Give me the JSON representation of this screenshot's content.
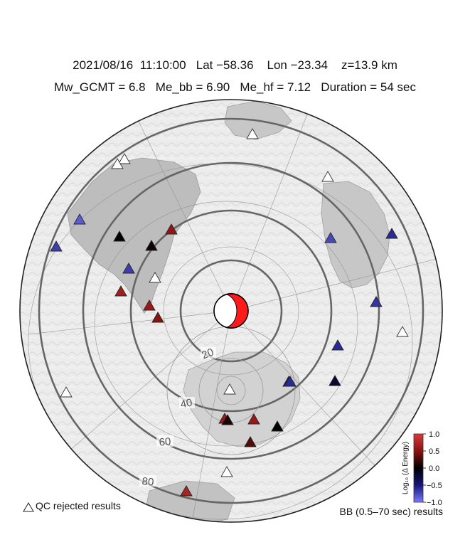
{
  "header": {
    "date": "2021/08/16",
    "time": "11:10:00",
    "lat": "Lat −58.36",
    "lon": "Lon −23.34",
    "depth": "z=13.9 km",
    "mw": "Mw_GCMT = 6.8",
    "me_bb": "Me_bb = 6.90",
    "me_hf": "Me_hf = 7.12",
    "duration": "Duration = 54 sec"
  },
  "distance_rings": {
    "labels": [
      "20",
      "40",
      "60",
      "80"
    ],
    "ring_color": "#666666"
  },
  "focal_mechanism": {
    "fill_color": "#ff1a1a",
    "background_color": "#ffffff"
  },
  "stations": [
    {
      "id": "s01",
      "status": "rejected",
      "energy": null
    },
    {
      "id": "s02",
      "status": "rejected",
      "energy": null
    },
    {
      "id": "s03",
      "status": "rejected",
      "energy": null
    },
    {
      "id": "s04",
      "status": "rejected",
      "energy": null
    },
    {
      "id": "s05",
      "status": "ok",
      "energy": -0.85
    },
    {
      "id": "s06",
      "status": "ok",
      "energy": -0.7
    },
    {
      "id": "s07",
      "status": "ok",
      "energy": -0.7
    },
    {
      "id": "s08",
      "status": "ok",
      "energy": 0.0
    },
    {
      "id": "s09",
      "status": "ok",
      "energy": 0.05
    },
    {
      "id": "s10",
      "status": "ok",
      "energy": 0.55
    },
    {
      "id": "s11",
      "status": "ok",
      "energy": -0.75
    },
    {
      "id": "s12",
      "status": "rejected",
      "energy": null
    },
    {
      "id": "s13",
      "status": "ok",
      "energy": 0.65
    },
    {
      "id": "s14",
      "status": "ok",
      "energy": 0.6
    },
    {
      "id": "s15",
      "status": "ok",
      "energy": 0.5
    },
    {
      "id": "s16",
      "status": "ok",
      "energy": -0.6
    },
    {
      "id": "s17",
      "status": "ok",
      "energy": -0.65
    },
    {
      "id": "s18",
      "status": "ok",
      "energy": -0.6
    },
    {
      "id": "s19",
      "status": "ok",
      "energy": -0.55
    },
    {
      "id": "s20",
      "status": "rejected",
      "energy": null
    },
    {
      "id": "s21",
      "status": "ok",
      "energy": -0.2
    },
    {
      "id": "s22",
      "status": "ok",
      "energy": -0.6
    },
    {
      "id": "s23",
      "status": "rejected",
      "energy": null
    },
    {
      "id": "s24",
      "status": "rejected",
      "energy": null
    },
    {
      "id": "s25",
      "status": "ok",
      "energy": 0.6
    },
    {
      "id": "s26",
      "status": "ok",
      "energy": 0.1
    },
    {
      "id": "s27",
      "status": "ok",
      "energy": 0.6
    },
    {
      "id": "s28",
      "status": "ok",
      "energy": 0.0
    },
    {
      "id": "s29",
      "status": "ok",
      "energy": 0.3
    },
    {
      "id": "s30",
      "status": "rejected",
      "energy": null
    },
    {
      "id": "s31",
      "status": "ok",
      "energy": 0.7
    }
  ],
  "colorbar": {
    "label": "Log₁₀ (Δ Energy)",
    "ticks": [
      "1.0",
      "0.5",
      "0.0",
      "−0.5",
      "−1.0"
    ],
    "range": [
      -1.0,
      1.0
    ]
  },
  "legend": {
    "qc_rejected": "QC rejected results",
    "caption": "BB (0.5–70 sec) results"
  }
}
